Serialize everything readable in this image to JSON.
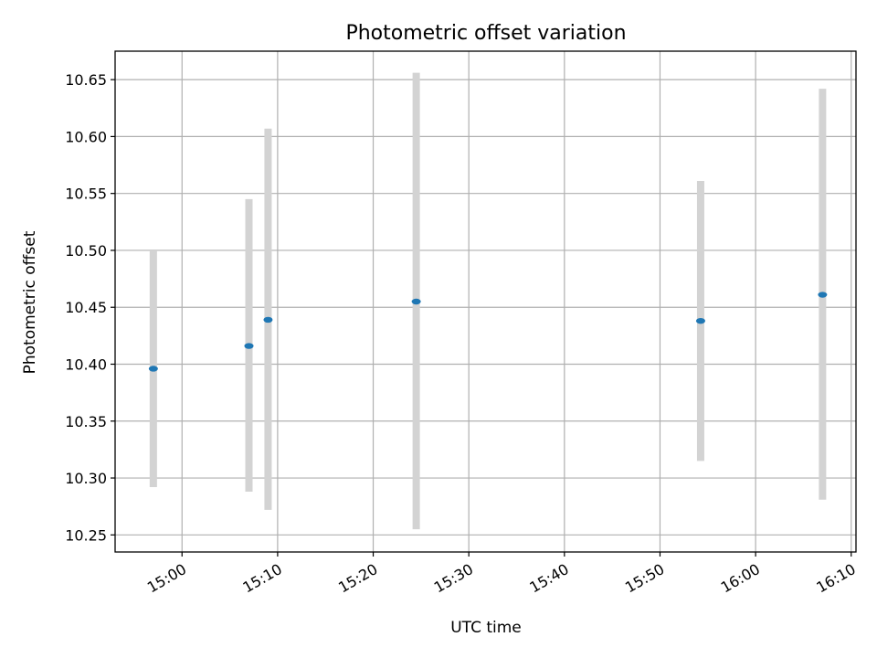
{
  "chart_data": {
    "type": "scatter",
    "title": "Photometric offset variation",
    "xlabel": "UTC time",
    "ylabel": "Photometric offset",
    "x_unit": "time of day (HH:MM)",
    "xlim": [
      "14:53",
      "16:10:30"
    ],
    "ylim": [
      10.235,
      10.675
    ],
    "x_ticks": [
      "15:00",
      "15:10",
      "15:20",
      "15:30",
      "15:40",
      "15:50",
      "16:00",
      "16:10"
    ],
    "y_ticks": [
      "10.25",
      "10.30",
      "10.35",
      "10.40",
      "10.45",
      "10.50",
      "10.55",
      "10.60",
      "10.65"
    ],
    "grid": true,
    "marker_color": "#1f77b4",
    "errorbar_color": "#d3d3d3",
    "series": [
      {
        "points": [
          {
            "x": "14:57",
            "y": 10.396,
            "ylow": 10.292,
            "yhigh": 10.5
          },
          {
            "x": "15:07",
            "y": 10.416,
            "ylow": 10.288,
            "yhigh": 10.545
          },
          {
            "x": "15:09",
            "y": 10.439,
            "ylow": 10.272,
            "yhigh": 10.607
          },
          {
            "x": "15:24:30",
            "y": 10.455,
            "ylow": 10.255,
            "yhigh": 10.656
          },
          {
            "x": "15:54:15",
            "y": 10.438,
            "ylow": 10.315,
            "yhigh": 10.561
          },
          {
            "x": "16:07",
            "y": 10.461,
            "ylow": 10.281,
            "yhigh": 10.642
          }
        ]
      }
    ]
  }
}
